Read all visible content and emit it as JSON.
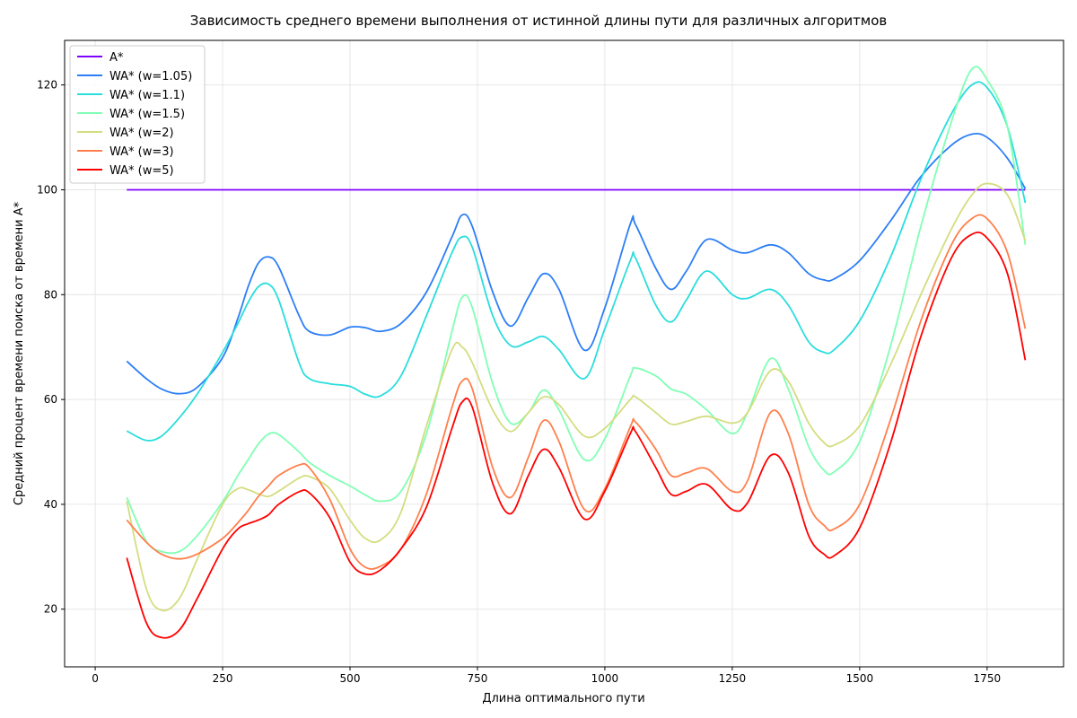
{
  "chart_data": {
    "type": "line",
    "title": "Зависимость среднего времени выполнения от истинной длины пути для различных алгоритмов",
    "xlabel": "Длина оптимального пути",
    "ylabel": "Средний процент времени поиска от времени A*",
    "xlim": [
      -60,
      1900
    ],
    "ylim": [
      9,
      128.5
    ],
    "xticks": [
      0,
      250,
      500,
      750,
      1000,
      1250,
      1500,
      1750
    ],
    "yticks": [
      20,
      40,
      60,
      80,
      100,
      120
    ],
    "grid": true,
    "legend_position": "upper left",
    "x": [
      62,
      100,
      130,
      165,
      200,
      250,
      280,
      300,
      320,
      340,
      360,
      400,
      420,
      460,
      500,
      530,
      560,
      600,
      650,
      700,
      720,
      740,
      780,
      815,
      850,
      880,
      910,
      960,
      1000,
      1050,
      1060,
      1100,
      1130,
      1160,
      1200,
      1250,
      1280,
      1325,
      1360,
      1400,
      1430,
      1450,
      1500,
      1560,
      1620,
      1680,
      1720,
      1750,
      1790,
      1825
    ],
    "series": [
      {
        "name": "A*",
        "color": "#8000ff",
        "values": [
          100,
          100,
          100,
          100,
          100,
          100,
          100,
          100,
          100,
          100,
          100,
          100,
          100,
          100,
          100,
          100,
          100,
          100,
          100,
          100,
          100,
          100,
          100,
          100,
          100,
          100,
          100,
          100,
          100,
          100,
          100,
          100,
          100,
          100,
          100,
          100,
          100,
          100,
          100,
          100,
          100,
          100,
          100,
          100,
          100,
          100,
          100,
          100,
          100,
          100
        ]
      },
      {
        "name": "WA* (w=1.05)",
        "color": "#2c7ef7",
        "values": [
          67.3,
          64.0,
          62.0,
          61.1,
          62.3,
          68.0,
          75.5,
          81.5,
          86.0,
          87.2,
          85.3,
          76.0,
          73.0,
          72.3,
          73.8,
          73.7,
          73.0,
          74.5,
          80.5,
          91.0,
          95.2,
          93.0,
          80.5,
          74.0,
          79.5,
          84.0,
          81.0,
          69.4,
          77.5,
          93.5,
          93.4,
          85.0,
          81.0,
          84.5,
          90.5,
          88.5,
          88.0,
          89.5,
          88.0,
          84.0,
          82.8,
          83.0,
          86.5,
          94.0,
          102.5,
          108.5,
          110.6,
          110.0,
          106.0,
          100.2
        ]
      },
      {
        "name": "WA* (w=1.1)",
        "color": "#2adddd",
        "values": [
          54.0,
          52.2,
          53.0,
          56.5,
          61.0,
          69.0,
          74.5,
          78.5,
          81.5,
          82.0,
          79.0,
          67.0,
          64.0,
          63.0,
          62.5,
          61.0,
          60.7,
          64.5,
          76.0,
          88.0,
          91.0,
          89.0,
          76.0,
          70.3,
          71.0,
          72.0,
          69.5,
          64.0,
          73.5,
          86.5,
          87.0,
          78.0,
          74.8,
          79.0,
          84.5,
          80.0,
          79.3,
          81.0,
          78.0,
          71.0,
          69.0,
          69.5,
          75.0,
          87.0,
          102.0,
          114.5,
          120.0,
          119.5,
          112.0,
          97.5
        ]
      },
      {
        "name": "WA* (w=1.5)",
        "color": "#80ffb4",
        "values": [
          41.3,
          33.0,
          31.0,
          31.0,
          34.0,
          40.5,
          45.5,
          48.5,
          51.5,
          53.4,
          53.3,
          50.0,
          48.0,
          45.5,
          43.5,
          41.8,
          40.6,
          42.5,
          53.5,
          73.0,
          79.5,
          77.5,
          63.0,
          55.5,
          57.5,
          61.8,
          58.0,
          48.5,
          52.5,
          64.5,
          66.0,
          64.5,
          62.0,
          61.0,
          58.0,
          53.5,
          57.5,
          67.8,
          62.0,
          51.0,
          46.5,
          46.2,
          52.0,
          70.0,
          93.0,
          113.0,
          123.0,
          121.0,
          112.0,
          89.5
        ]
      },
      {
        "name": "WA* (w=2)",
        "color": "#d4dd80",
        "values": [
          40.6,
          24.0,
          19.8,
          22.0,
          29.5,
          40.0,
          43.0,
          42.8,
          42.0,
          41.5,
          42.5,
          45.0,
          45.3,
          43.0,
          37.0,
          33.5,
          33.2,
          38.5,
          55.0,
          69.5,
          70.0,
          67.0,
          58.0,
          53.9,
          57.5,
          60.5,
          59.0,
          53.0,
          54.5,
          60.0,
          60.5,
          57.5,
          55.3,
          55.8,
          56.8,
          55.5,
          57.5,
          65.5,
          63.5,
          55.5,
          51.8,
          51.3,
          55.0,
          66.5,
          80.0,
          92.5,
          99.0,
          101.2,
          99.0,
          90.3
        ]
      },
      {
        "name": "WA* (w=3)",
        "color": "#ff7f4c",
        "values": [
          37.0,
          32.8,
          30.5,
          29.6,
          30.5,
          33.5,
          36.5,
          38.8,
          41.5,
          43.5,
          45.5,
          47.5,
          47.0,
          41.0,
          31.5,
          28.0,
          28.2,
          31.5,
          42.0,
          58.5,
          63.5,
          62.0,
          47.0,
          41.3,
          49.0,
          56.0,
          52.0,
          39.0,
          43.0,
          54.8,
          55.7,
          50.5,
          45.5,
          46.0,
          46.8,
          42.5,
          44.5,
          57.5,
          53.5,
          40.0,
          36.0,
          35.3,
          40.0,
          56.0,
          75.0,
          89.5,
          94.5,
          94.5,
          88.0,
          73.5
        ]
      },
      {
        "name": "WA* (w=5)",
        "color": "#ff0000",
        "values": [
          29.8,
          17.5,
          14.6,
          16.0,
          22.0,
          31.5,
          35.3,
          36.3,
          37.0,
          38.0,
          40.0,
          42.4,
          42.2,
          37.5,
          29.0,
          26.7,
          27.5,
          31.5,
          39.5,
          54.5,
          59.5,
          58.5,
          44.0,
          38.2,
          45.5,
          50.5,
          47.0,
          37.2,
          42.5,
          53.5,
          53.9,
          47.0,
          41.9,
          42.5,
          43.8,
          39.0,
          40.3,
          49.3,
          46.0,
          34.0,
          30.5,
          30.2,
          35.5,
          51.5,
          72.0,
          87.0,
          91.5,
          90.8,
          84.0,
          67.5
        ]
      }
    ]
  }
}
